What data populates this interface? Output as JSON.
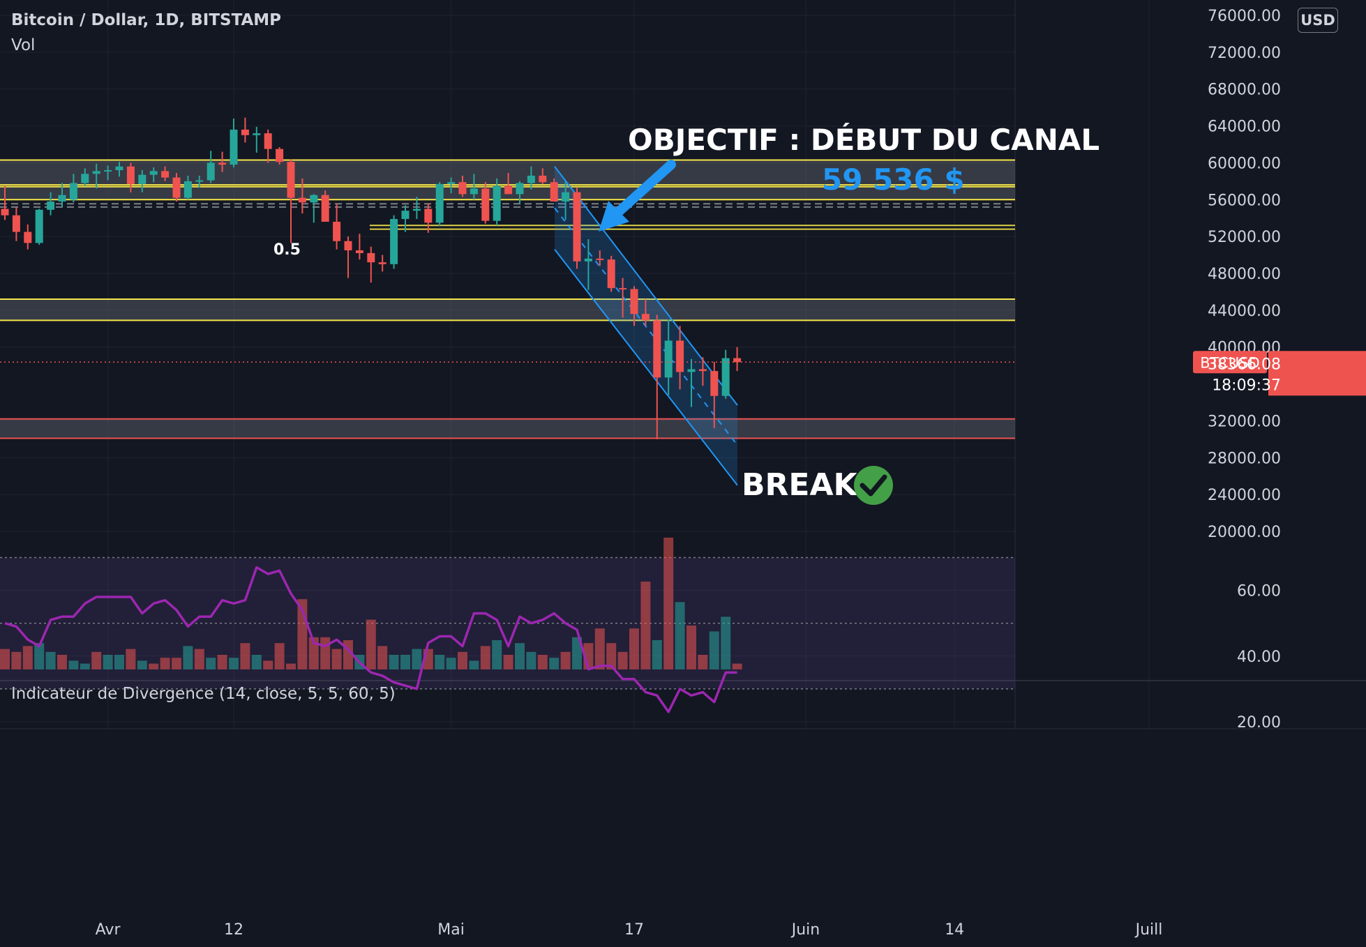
{
  "header": {
    "symbol_title": "Bitcoin / Dollar, 1D, BITSTAMP",
    "volume_label": "Vol",
    "currency_button": "USD"
  },
  "indicator": {
    "title": "Indicateur de Divergence (14, close, 5, 5, 60, 5)"
  },
  "annotations": {
    "objective_line1": "OBJECTIF : DÉBUT DU CANAL",
    "objective_price": "59 536 $",
    "break_label": "BREAK",
    "fib_label": "0.5"
  },
  "price_marker": {
    "symbol": "BTCUSD",
    "price": "38366.08",
    "countdown": "18:09:37"
  },
  "colors": {
    "background": "#131722",
    "up": "#26a69a",
    "down": "#ef5350",
    "zone_line": "#f5e64a",
    "support_line": "#ef5350",
    "channel": "#2196f3",
    "indicator_line": "#9c27b0",
    "annotation_blue": "#2196f3",
    "check_green": "#43a047"
  },
  "chart_data": {
    "type": "candlestick",
    "price_axis": {
      "ticks": [
        "76000.00",
        "72000.00",
        "68000.00",
        "64000.00",
        "60000.00",
        "56000.00",
        "52000.00",
        "48000.00",
        "44000.00",
        "40000.00",
        "32000.00",
        "28000.00",
        "24000.00",
        "20000.00"
      ],
      "range": [
        20000,
        76000
      ]
    },
    "time_axis": {
      "labels": [
        {
          "text": "Avr",
          "index": 9
        },
        {
          "text": "12",
          "index": 20
        },
        {
          "text": "Mai",
          "index": 39
        },
        {
          "text": "17",
          "index": 55
        },
        {
          "text": "Juin",
          "index": 70
        },
        {
          "text": "14",
          "index": 83
        },
        {
          "text": "Juill",
          "index": 100
        }
      ]
    },
    "candles": [
      {
        "o": 55000,
        "h": 57500,
        "l": 53800,
        "c": 54300
      },
      {
        "o": 54300,
        "h": 55200,
        "l": 51500,
        "c": 52500
      },
      {
        "o": 52500,
        "h": 53300,
        "l": 50600,
        "c": 51300
      },
      {
        "o": 51300,
        "h": 55000,
        "l": 51100,
        "c": 54900
      },
      {
        "o": 54900,
        "h": 56800,
        "l": 54300,
        "c": 55800
      },
      {
        "o": 55800,
        "h": 57800,
        "l": 55200,
        "c": 56500
      },
      {
        "o": 56000,
        "h": 58800,
        "l": 55700,
        "c": 57800
      },
      {
        "o": 57800,
        "h": 59400,
        "l": 57500,
        "c": 58800
      },
      {
        "o": 58800,
        "h": 59900,
        "l": 57200,
        "c": 59100
      },
      {
        "o": 59100,
        "h": 59700,
        "l": 58100,
        "c": 59200
      },
      {
        "o": 59200,
        "h": 60100,
        "l": 58500,
        "c": 59600
      },
      {
        "o": 59600,
        "h": 60000,
        "l": 56800,
        "c": 57700
      },
      {
        "o": 57700,
        "h": 59200,
        "l": 56800,
        "c": 58700
      },
      {
        "o": 58700,
        "h": 59500,
        "l": 57900,
        "c": 59100
      },
      {
        "o": 59100,
        "h": 59600,
        "l": 58000,
        "c": 58400
      },
      {
        "o": 58400,
        "h": 58900,
        "l": 55800,
        "c": 56200
      },
      {
        "o": 56200,
        "h": 58600,
        "l": 56000,
        "c": 58000
      },
      {
        "o": 58000,
        "h": 58600,
        "l": 57300,
        "c": 58100
      },
      {
        "o": 58100,
        "h": 61300,
        "l": 57800,
        "c": 60000
      },
      {
        "o": 60000,
        "h": 61200,
        "l": 59000,
        "c": 59800
      },
      {
        "o": 59800,
        "h": 64800,
        "l": 59500,
        "c": 63600
      },
      {
        "o": 63600,
        "h": 64900,
        "l": 62200,
        "c": 63000
      },
      {
        "o": 63000,
        "h": 63900,
        "l": 61100,
        "c": 63200
      },
      {
        "o": 63200,
        "h": 63600,
        "l": 60000,
        "c": 61500
      },
      {
        "o": 61500,
        "h": 61700,
        "l": 59800,
        "c": 60100
      },
      {
        "o": 60100,
        "h": 60400,
        "l": 51300,
        "c": 56200
      },
      {
        "o": 56200,
        "h": 58300,
        "l": 54500,
        "c": 55700
      },
      {
        "o": 55700,
        "h": 56600,
        "l": 53500,
        "c": 56500
      },
      {
        "o": 56500,
        "h": 57000,
        "l": 53700,
        "c": 53600
      },
      {
        "o": 53600,
        "h": 55500,
        "l": 50600,
        "c": 51500
      },
      {
        "o": 51500,
        "h": 52000,
        "l": 47500,
        "c": 50500
      },
      {
        "o": 50500,
        "h": 52300,
        "l": 49500,
        "c": 50200
      },
      {
        "o": 50200,
        "h": 50900,
        "l": 47000,
        "c": 49200
      },
      {
        "o": 49200,
        "h": 50000,
        "l": 48200,
        "c": 49000
      },
      {
        "o": 49000,
        "h": 54300,
        "l": 48500,
        "c": 53900
      },
      {
        "o": 53900,
        "h": 55400,
        "l": 52500,
        "c": 54800
      },
      {
        "o": 54800,
        "h": 56300,
        "l": 53900,
        "c": 55000
      },
      {
        "o": 55000,
        "h": 55600,
        "l": 52400,
        "c": 53500
      },
      {
        "o": 53500,
        "h": 57900,
        "l": 53100,
        "c": 57700
      },
      {
        "o": 57700,
        "h": 58400,
        "l": 56700,
        "c": 57900
      },
      {
        "o": 57900,
        "h": 58600,
        "l": 56300,
        "c": 56600
      },
      {
        "o": 56600,
        "h": 58800,
        "l": 56000,
        "c": 57200
      },
      {
        "o": 57200,
        "h": 57900,
        "l": 53400,
        "c": 53700
      },
      {
        "o": 53700,
        "h": 58300,
        "l": 53200,
        "c": 57500
      },
      {
        "o": 57500,
        "h": 58900,
        "l": 56800,
        "c": 56600
      },
      {
        "o": 56600,
        "h": 58000,
        "l": 55600,
        "c": 57800
      },
      {
        "o": 57800,
        "h": 59600,
        "l": 57100,
        "c": 58600
      },
      {
        "o": 58600,
        "h": 59400,
        "l": 57700,
        "c": 57900
      },
      {
        "o": 57900,
        "h": 58300,
        "l": 55800,
        "c": 55800
      },
      {
        "o": 55800,
        "h": 58000,
        "l": 53800,
        "c": 56800
      },
      {
        "o": 56800,
        "h": 57300,
        "l": 48500,
        "c": 49300
      },
      {
        "o": 49300,
        "h": 51700,
        "l": 46200,
        "c": 49600
      },
      {
        "o": 49600,
        "h": 50500,
        "l": 48800,
        "c": 49500
      },
      {
        "o": 49500,
        "h": 49900,
        "l": 46000,
        "c": 46400
      },
      {
        "o": 46400,
        "h": 47500,
        "l": 43200,
        "c": 46300
      },
      {
        "o": 46300,
        "h": 46600,
        "l": 42300,
        "c": 43600
      },
      {
        "o": 43600,
        "h": 45200,
        "l": 42300,
        "c": 42900
      },
      {
        "o": 42900,
        "h": 43500,
        "l": 30000,
        "c": 36700
      },
      {
        "o": 36700,
        "h": 43000,
        "l": 34800,
        "c": 40700
      },
      {
        "o": 40700,
        "h": 42300,
        "l": 35400,
        "c": 37300
      },
      {
        "o": 37300,
        "h": 38700,
        "l": 33500,
        "c": 37600
      },
      {
        "o": 37600,
        "h": 38900,
        "l": 35800,
        "c": 37400
      },
      {
        "o": 37400,
        "h": 38400,
        "l": 31200,
        "c": 34700
      },
      {
        "o": 34700,
        "h": 39700,
        "l": 34400,
        "c": 38800
      },
      {
        "o": 38800,
        "h": 40000,
        "l": 37400,
        "c": 38366
      }
    ],
    "volume": [
      7,
      6,
      8,
      9,
      6,
      5,
      3,
      2,
      6,
      5,
      5,
      7,
      3,
      2,
      4,
      4,
      8,
      7,
      4,
      5,
      4,
      9,
      5,
      3,
      9,
      2,
      24,
      11,
      11,
      7,
      10,
      5,
      17,
      8,
      5,
      5,
      7,
      7,
      5,
      4,
      6,
      3,
      8,
      10,
      5,
      9,
      6,
      5,
      4,
      6,
      11,
      9,
      14,
      9,
      6,
      14,
      30,
      10,
      45,
      23,
      15,
      5,
      13,
      18,
      2
    ],
    "volume_up": [
      false,
      false,
      false,
      true,
      true,
      false,
      true,
      true,
      false,
      true,
      true,
      false,
      true,
      false,
      false,
      false,
      true,
      false,
      true,
      false,
      true,
      false,
      true,
      false,
      false,
      false,
      false,
      false,
      false,
      false,
      false,
      true,
      false,
      false,
      true,
      true,
      true,
      false,
      true,
      true,
      false,
      true,
      false,
      true,
      false,
      true,
      true,
      false,
      true,
      false,
      true,
      false,
      false,
      false,
      false,
      false,
      false,
      true,
      false,
      true,
      false,
      false,
      true,
      true,
      false
    ],
    "zones": [
      {
        "label": "resistance",
        "top": 60300,
        "bottom": 57600
      },
      {
        "label": "mid",
        "top": 57400,
        "bottom": 56000
      },
      {
        "label": "support-upper",
        "top": 45200,
        "bottom": 42900
      },
      {
        "label": "support-lower",
        "top": 32200,
        "bottom": 30100
      }
    ],
    "indicator_axis": {
      "ticks": [
        "60.00",
        "40.00",
        "20.00"
      ],
      "range": [
        20,
        70
      ],
      "upper_band": 70,
      "middle_band": 50,
      "lower_band": 30
    },
    "indicator_values": [
      50,
      49,
      45,
      43,
      51,
      52,
      52,
      56,
      58,
      58,
      58,
      58,
      53,
      56,
      57,
      54,
      49,
      52,
      52,
      57,
      56,
      57,
      67,
      65,
      66,
      59,
      54,
      44,
      43,
      45,
      42,
      38,
      35,
      34,
      32,
      31,
      30,
      44,
      46,
      46,
      43,
      53,
      53,
      51,
      43,
      52,
      50,
      51,
      53,
      50,
      48,
      36,
      37,
      37,
      33,
      33,
      29,
      28,
      23,
      30,
      28,
      29,
      26,
      35,
      35
    ]
  }
}
